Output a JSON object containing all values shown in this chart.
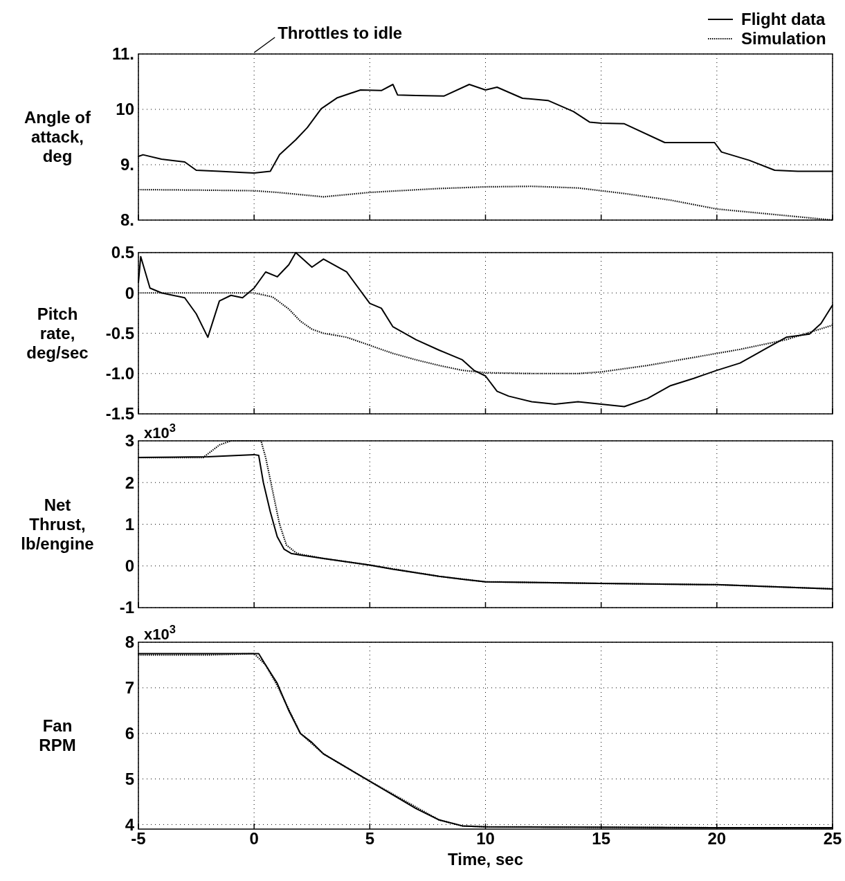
{
  "chart_data": [
    {
      "type": "line",
      "ylabel": "Angle of\nattack,\ndeg",
      "xlim": [
        -5,
        25
      ],
      "xticks": [
        -5,
        0,
        5,
        10,
        15,
        20,
        25
      ],
      "ylim": [
        8,
        11
      ],
      "yticks": [
        {
          "value": 8,
          "label": "8."
        },
        {
          "value": 9,
          "label": "9."
        },
        10,
        {
          "value": 11,
          "label": "11."
        }
      ],
      "grid": true,
      "tick_labels": "y",
      "legend": "top right",
      "annotations": [
        "Throttles to idle"
      ],
      "series": [
        {
          "name": "Flight data",
          "color": "#000000",
          "line_style": "solid",
          "x": [
            -5,
            -4.8,
            -4,
            -3,
            -2.5,
            -1.5,
            -0.5,
            0,
            0.7,
            1.1,
            1.8,
            2.3,
            2.9,
            3.6,
            4.6,
            5.5,
            6,
            6.2,
            7,
            8.2,
            9.3,
            10,
            10.5,
            11.6,
            12.7,
            13.8,
            14.5,
            15,
            16,
            17.75,
            19.9,
            20.2,
            21.4,
            22.5,
            23.5,
            25
          ],
          "values": [
            9.15,
            9.18,
            9.1,
            9.05,
            8.9,
            8.88,
            8.86,
            8.85,
            8.88,
            9.18,
            9.45,
            9.67,
            10.01,
            10.21,
            10.35,
            10.34,
            10.45,
            10.26,
            10.25,
            10.24,
            10.45,
            10.35,
            10.4,
            10.2,
            10.16,
            9.96,
            9.77,
            9.75,
            9.74,
            9.4,
            9.4,
            9.23,
            9.08,
            8.9,
            8.88,
            8.88
          ]
        },
        {
          "name": "Simulation",
          "color": "#000000",
          "line_style": "dotted",
          "x": [
            -5,
            -2,
            0,
            1,
            3,
            5,
            8,
            10,
            12,
            14,
            15,
            16,
            18,
            20,
            22.5,
            25
          ],
          "values": [
            8.55,
            8.54,
            8.53,
            8.5,
            8.42,
            8.5,
            8.57,
            8.6,
            8.61,
            8.58,
            8.53,
            8.48,
            8.36,
            8.2,
            8.1,
            8.0
          ]
        }
      ]
    },
    {
      "type": "line",
      "ylabel": "Pitch\nrate,\ndeg/sec",
      "xlim": [
        -5,
        25
      ],
      "xticks": [
        -5,
        0,
        5,
        10,
        15,
        20,
        25
      ],
      "ylim": [
        -1.5,
        0.5
      ],
      "yticks": [
        0.5,
        0,
        -0.5,
        {
          "value": -1,
          "label": "-1.0"
        },
        -1.5
      ],
      "grid": true,
      "tick_labels": "y",
      "series": [
        {
          "color": "#000000",
          "line_style": "solid",
          "x": [
            -5,
            -4.9,
            -4.5,
            -4,
            -3,
            -2.5,
            -2,
            -1.5,
            -1,
            -0.5,
            0,
            0.5,
            1,
            1.5,
            1.8,
            2.5,
            3,
            4,
            5,
            5.5,
            6,
            7,
            8,
            9,
            9.5,
            10,
            10.5,
            11,
            12,
            13,
            14,
            15,
            16,
            17,
            18,
            19,
            20,
            21,
            22,
            23,
            24,
            24.5,
            25
          ],
          "values": [
            0.13,
            0.45,
            0.06,
            0,
            -0.06,
            -0.26,
            -0.55,
            -0.1,
            -0.03,
            -0.06,
            0.06,
            0.26,
            0.2,
            0.35,
            0.5,
            0.32,
            0.42,
            0.26,
            -0.13,
            -0.19,
            -0.42,
            -0.58,
            -0.71,
            -0.83,
            -0.96,
            -1.03,
            -1.22,
            -1.28,
            -1.35,
            -1.38,
            -1.35,
            -1.38,
            -1.41,
            -1.31,
            -1.15,
            -1.06,
            -0.96,
            -0.87,
            -0.71,
            -0.55,
            -0.51,
            -0.38,
            -0.15
          ]
        },
        {
          "color": "#000000",
          "line_style": "dotted",
          "x": [
            -5,
            0,
            0.8,
            1.5,
            2,
            2.5,
            3,
            4,
            5,
            6,
            7,
            8,
            9,
            10,
            12,
            14,
            15,
            17,
            19,
            21,
            23,
            25
          ],
          "values": [
            0,
            0,
            -0.05,
            -0.2,
            -0.35,
            -0.45,
            -0.5,
            -0.55,
            -0.65,
            -0.75,
            -0.83,
            -0.9,
            -0.96,
            -0.99,
            -1.0,
            -1.0,
            -0.98,
            -0.9,
            -0.8,
            -0.7,
            -0.58,
            -0.4
          ]
        }
      ]
    },
    {
      "type": "line",
      "ylabel": "Net\nThrust,\nlb/engine",
      "xlim": [
        -5,
        25
      ],
      "xticks": [
        -5,
        0,
        5,
        10,
        15,
        20,
        25
      ],
      "ylim": [
        -1,
        3
      ],
      "yticks": [
        -1,
        0,
        1,
        2,
        3
      ],
      "grid": true,
      "tick_labels": "y",
      "annotations": [
        "x10$^{3}$"
      ],
      "series": [
        {
          "color": "#000000",
          "line_style": "solid",
          "x": [
            -5,
            -2,
            0,
            0.2,
            0.4,
            0.7,
            1,
            1.3,
            1.6,
            2,
            3,
            4,
            5,
            6,
            8,
            9,
            10,
            15,
            20,
            25
          ],
          "values": [
            2.6,
            2.62,
            2.67,
            2.65,
            2.0,
            1.3,
            0.7,
            0.4,
            0.3,
            0.26,
            0.18,
            0.1,
            0.02,
            -0.08,
            -0.25,
            -0.32,
            -0.38,
            -0.42,
            -0.45,
            -0.55
          ]
        },
        {
          "color": "#000000",
          "line_style": "dotted",
          "x": [
            -5,
            -2.2,
            -1.5,
            -1,
            0.3,
            0.5,
            0.8,
            1.1,
            1.4,
            1.8,
            2,
            3,
            5,
            8,
            10,
            15,
            20,
            25
          ],
          "values": [
            2.6,
            2.6,
            2.9,
            3.0,
            3.0,
            2.6,
            1.8,
            1.0,
            0.5,
            0.32,
            0.28,
            0.18,
            0.02,
            -0.25,
            -0.38,
            -0.42,
            -0.45,
            -0.55
          ]
        }
      ]
    },
    {
      "type": "line",
      "ylabel": "Fan\nRPM",
      "xlabel": "Time, sec",
      "xlim": [
        -5,
        25
      ],
      "xticks": [
        -5,
        0,
        5,
        10,
        15,
        20,
        25
      ],
      "ylim": [
        3.9,
        8
      ],
      "yticks": [
        4,
        5,
        6,
        7,
        8
      ],
      "grid": true,
      "annotations": [
        "x10$^{3}$"
      ],
      "series": [
        {
          "color": "#000000",
          "line_style": "solid",
          "x": [
            -5,
            0,
            0.2,
            0.5,
            1,
            1.5,
            2,
            2.5,
            3,
            4,
            5,
            6,
            7,
            8,
            9,
            10,
            15,
            20,
            25
          ],
          "values": [
            7.75,
            7.75,
            7.75,
            7.5,
            7.1,
            6.5,
            6.0,
            5.8,
            5.55,
            5.25,
            4.95,
            4.65,
            4.35,
            4.1,
            3.97,
            3.95,
            3.94,
            3.93,
            3.93
          ]
        },
        {
          "color": "#000000",
          "line_style": "dotted",
          "x": [
            -5,
            -2,
            0,
            0.5,
            1,
            2,
            3,
            5,
            8,
            9,
            10,
            25
          ],
          "values": [
            7.72,
            7.72,
            7.75,
            7.5,
            7.05,
            6.0,
            5.55,
            4.95,
            4.1,
            3.97,
            3.95,
            3.92
          ]
        }
      ]
    }
  ]
}
